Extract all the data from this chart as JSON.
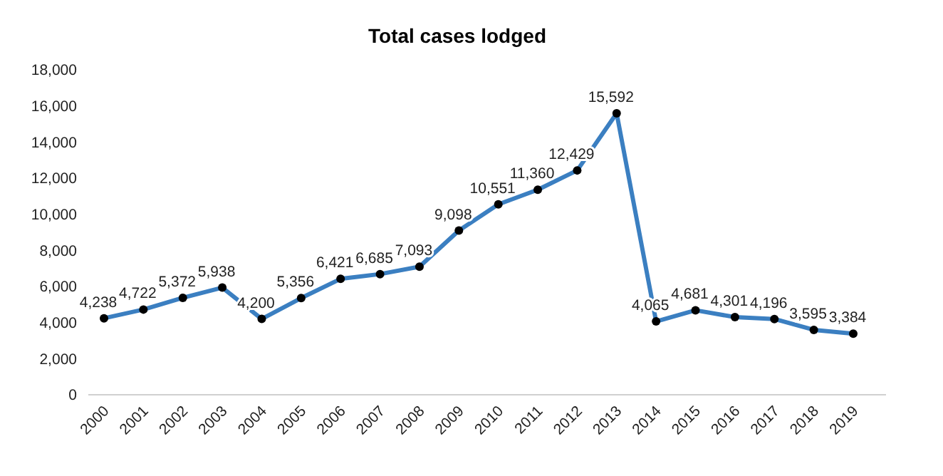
{
  "chart_data": {
    "type": "line",
    "title": "Total cases lodged",
    "categories": [
      "2000",
      "2001",
      "2002",
      "2003",
      "2004",
      "2005",
      "2006",
      "2007",
      "2008",
      "2009",
      "2010",
      "2011",
      "2012",
      "2013",
      "2014",
      "2015",
      "2016",
      "2017",
      "2018",
      "2019"
    ],
    "series": [
      {
        "color": "#3b7fc1",
        "values": [
          4238,
          4722,
          5372,
          5938,
          4200,
          5356,
          6421,
          6685,
          7093,
          9098,
          10551,
          11360,
          12429,
          15592,
          4065,
          4681,
          4301,
          4196,
          3595,
          3384
        ],
        "value_labels": [
          "4,238",
          "4,722",
          "5,372",
          "5,938",
          "4,200",
          "5,356",
          "6,421",
          "6,685",
          "7,093",
          "9,098",
          "10,551",
          "11,360",
          "12,429",
          "15,592",
          "4,065",
          "4,681",
          "4,301",
          "4,196",
          "3,595",
          "3,384"
        ]
      }
    ],
    "ylim": [
      0,
      18000
    ],
    "yticks": [
      {
        "value": 0,
        "label": "0"
      },
      {
        "value": 2000,
        "label": "2,000"
      },
      {
        "value": 4000,
        "label": "4,000"
      },
      {
        "value": 6000,
        "label": "6,000"
      },
      {
        "value": 8000,
        "label": "8,000"
      },
      {
        "value": 10000,
        "label": "10,000"
      },
      {
        "value": 12000,
        "label": "12,000"
      },
      {
        "value": 14000,
        "label": "14,000"
      },
      {
        "value": 16000,
        "label": "16,000"
      },
      {
        "value": 18000,
        "label": "18,000"
      }
    ],
    "grid": false,
    "marker": "circle",
    "line_style": "solid"
  }
}
